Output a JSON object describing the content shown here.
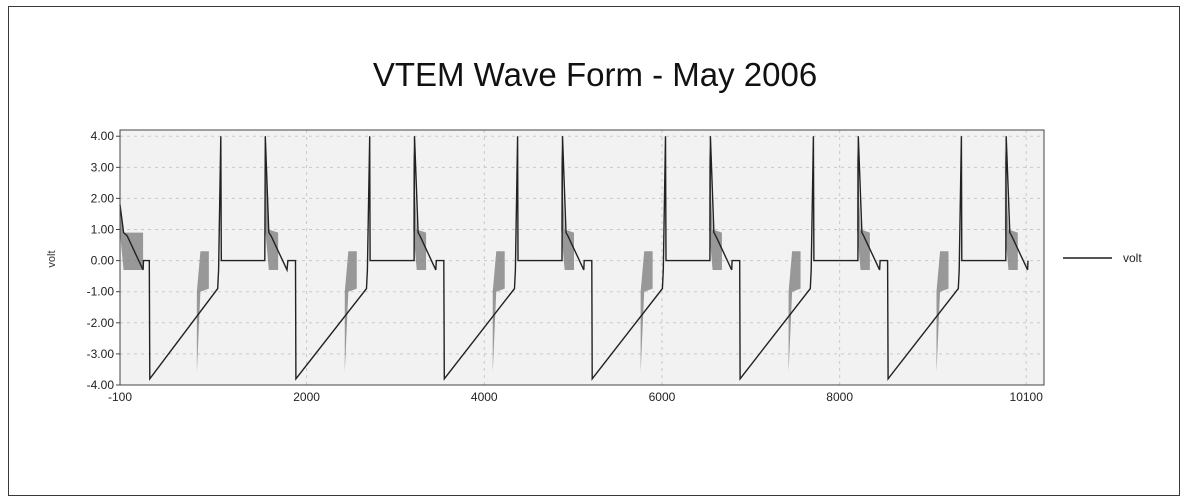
{
  "chart_data": {
    "type": "line",
    "title": "VTEM Wave Form - May 2006",
    "xlabel": "",
    "ylabel": "volt",
    "xlim": [
      -100,
      10300
    ],
    "ylim": [
      -4.0,
      4.2
    ],
    "x_ticks": [
      "-100",
      "2000",
      "4000",
      "6000",
      "8000",
      "10100"
    ],
    "x_tick_values": [
      -100,
      2000,
      4000,
      6000,
      8000,
      10100
    ],
    "y_ticks": [
      "4.00",
      "3.00",
      "2.00",
      "1.00",
      "0.00",
      "-1.00",
      "-2.00",
      "-3.00",
      "-4.00"
    ],
    "y_tick_values": [
      4,
      3,
      2,
      1,
      0,
      -1,
      -2,
      -3,
      -4
    ],
    "grid": true,
    "legend_position": "right",
    "series": [
      {
        "name": "volt",
        "color": "#555555",
        "description_period": 1665,
        "x": [
          -100,
          -60,
          -20,
          160,
          165,
          230,
          235,
          1000,
          1010,
          1035,
          1040,
          1530,
          1535,
          1575,
          1600,
          1780,
          1790,
          1875,
          1880,
          2675,
          2685,
          2710,
          2715,
          3210,
          3215,
          3255,
          3275,
          3455,
          3460,
          3545,
          3550,
          4340,
          4350,
          4375,
          4380,
          4875,
          4880,
          4920,
          4940,
          5120,
          5125,
          5210,
          5215,
          6005,
          6015,
          6040,
          6045,
          6540,
          6545,
          6585,
          6605,
          6785,
          6790,
          6875,
          6880,
          7670,
          7680,
          7705,
          7710,
          8205,
          8210,
          8250,
          8270,
          8450,
          8455,
          8540,
          8545,
          9335,
          9345,
          9370,
          9375,
          9870,
          9875,
          9915,
          9935,
          10115,
          10120
        ],
        "y": [
          1.8,
          0.9,
          0.8,
          -0.3,
          0.0,
          0.0,
          -3.8,
          -0.9,
          -0.3,
          4.0,
          0.0,
          0.0,
          4.0,
          0.9,
          0.8,
          -0.3,
          0.0,
          0.0,
          -3.8,
          -0.9,
          -0.3,
          4.0,
          0.0,
          0.0,
          4.0,
          0.9,
          0.8,
          -0.3,
          0.0,
          0.0,
          -3.8,
          -0.9,
          -0.3,
          4.0,
          0.0,
          0.0,
          4.0,
          0.9,
          0.8,
          -0.3,
          0.0,
          0.0,
          -3.8,
          -0.9,
          -0.3,
          4.0,
          0.0,
          0.0,
          4.0,
          0.9,
          0.8,
          -0.3,
          0.0,
          0.0,
          -3.8,
          -0.9,
          -0.3,
          4.0,
          0.0,
          0.0,
          4.0,
          0.9,
          0.8,
          -0.3,
          0.0,
          0.0,
          -3.8,
          -0.9,
          -0.3,
          4.0,
          0.0,
          0.0,
          4.0,
          0.9,
          0.8,
          -0.3,
          0.0
        ]
      }
    ]
  },
  "legend": {
    "label": "volt"
  }
}
